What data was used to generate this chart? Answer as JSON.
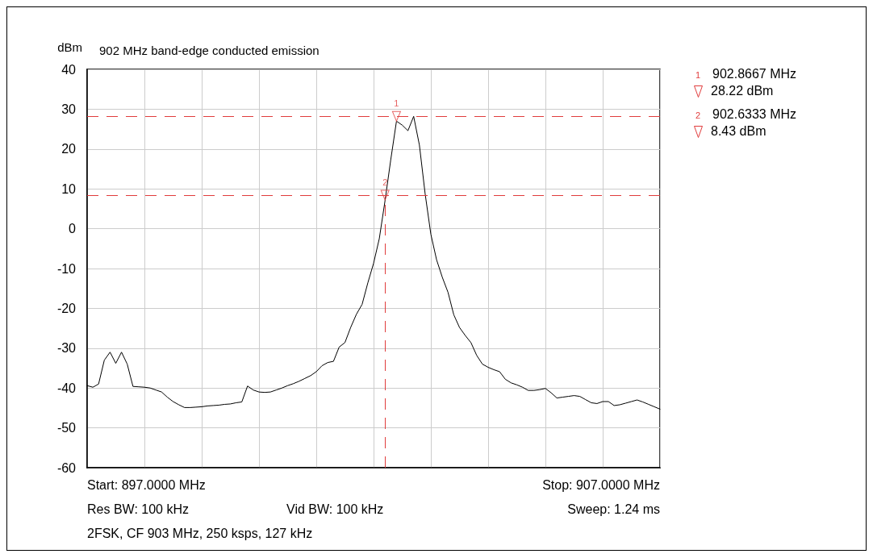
{
  "chart_data": {
    "type": "line",
    "title": "902 MHz band-edge conducted emission",
    "ylabel": "dBm",
    "categories": [
      null,
      null,
      null,
      null,
      null,
      null,
      null,
      null,
      null,
      null,
      null,
      null,
      null,
      null,
      null,
      null,
      null,
      null,
      null,
      null,
      null,
      null,
      null,
      null,
      null,
      null,
      null,
      null,
      null,
      null,
      null,
      null,
      null,
      null,
      null,
      null,
      null,
      null,
      null,
      null,
      null,
      null,
      null,
      null,
      null,
      null,
      null,
      null,
      null,
      null,
      null,
      null,
      null,
      null,
      null,
      null,
      null,
      null,
      null,
      null,
      null,
      null,
      null,
      null,
      null,
      null,
      null,
      null,
      null,
      null,
      null,
      null,
      null,
      null,
      null,
      null,
      null,
      null,
      null,
      null,
      null,
      null,
      null,
      null,
      null,
      null,
      null,
      null,
      null,
      null,
      null,
      null,
      null,
      null,
      null,
      null,
      null,
      null,
      null,
      null,
      null
    ],
    "ylim": [
      -60,
      40
    ],
    "yticks": [
      -60,
      -50,
      -40,
      -30,
      -20,
      -10,
      0,
      10,
      20,
      30,
      40
    ],
    "tick_labels": "y",
    "grid": true,
    "line_style": "solid",
    "series": [
      {
        "color": "#000000",
        "values": [
          -39.4,
          -39.8,
          -39,
          -33,
          -31,
          -33.8,
          -31,
          -34,
          -39.6,
          -39.7,
          -39.8,
          -40,
          -40.5,
          -41,
          -42.3,
          -43.4,
          -44.2,
          -44.9,
          -44.9,
          -44.8,
          -44.7,
          -44.5,
          -44.4,
          -44.3,
          -44.1,
          -44,
          -43.7,
          -43.5,
          -39.5,
          -40.5,
          -41,
          -41.1,
          -41,
          -40.5,
          -40,
          -39.4,
          -38.9,
          -38.3,
          -37.6,
          -36.9,
          -35.9,
          -34.4,
          -33.6,
          -33.3,
          -29.7,
          -28.6,
          -24.8,
          -21.5,
          -19,
          -13.6,
          -8.7,
          -2.5,
          7,
          17.3,
          27,
          26,
          24.6,
          28.2,
          21,
          8.8,
          -1.4,
          -7.8,
          -12.2,
          -16,
          -21.6,
          -24.8,
          -26.8,
          -28.6,
          -31.8,
          -34,
          -34.8,
          -35.4,
          -35.9,
          -37.8,
          -38.7,
          -39.2,
          -39.8,
          -40.6,
          -40.6,
          -40.4,
          -40.1,
          -41.2,
          -42.5,
          -42.3,
          -42.1,
          -41.9,
          -42.1,
          -42.9,
          -43.7,
          -43.9,
          -43.4,
          -43.4,
          -44.4,
          -44.2,
          -43.8,
          -43.4,
          -43,
          -43.5,
          -44.1,
          -44.7,
          -45.3
        ]
      },
      {
        "type": "scatter",
        "name": "1",
        "color": "#e03c3c",
        "marker": "triangle",
        "values": [
          null,
          null,
          null,
          null,
          null,
          null,
          null,
          null,
          null,
          null,
          null,
          null,
          null,
          null,
          null,
          null,
          null,
          null,
          null,
          null,
          null,
          null,
          null,
          null,
          null,
          null,
          null,
          null,
          null,
          null,
          null,
          null,
          null,
          null,
          null,
          null,
          null,
          null,
          null,
          null,
          null,
          null,
          null,
          null,
          null,
          null,
          null,
          null,
          null,
          null,
          null,
          null,
          null,
          null,
          28.22,
          null,
          null,
          null,
          null,
          null,
          null,
          null,
          null,
          null,
          null,
          null,
          null,
          null,
          null,
          null,
          null,
          null,
          null,
          null,
          null,
          null,
          null,
          null,
          null,
          null,
          null,
          null,
          null,
          null,
          null,
          null,
          null,
          null,
          null,
          null,
          null,
          null,
          null,
          null,
          null,
          null,
          null,
          null,
          null,
          null,
          null
        ]
      },
      {
        "type": "scatter",
        "name": "2",
        "color": "#e03c3c",
        "marker": "triangle",
        "line_style": "dashed",
        "values": [
          null,
          null,
          null,
          null,
          null,
          null,
          null,
          null,
          null,
          null,
          null,
          null,
          null,
          null,
          null,
          null,
          null,
          null,
          null,
          null,
          null,
          null,
          null,
          null,
          null,
          null,
          null,
          null,
          null,
          null,
          null,
          null,
          null,
          null,
          null,
          null,
          null,
          null,
          null,
          null,
          null,
          null,
          null,
          null,
          null,
          null,
          null,
          null,
          null,
          null,
          null,
          null,
          8.43,
          null,
          null,
          null,
          null,
          null,
          null,
          null,
          null,
          null,
          null,
          null,
          null,
          null,
          null,
          null,
          null,
          null,
          null,
          null,
          null,
          null,
          null,
          null,
          null,
          null,
          null,
          null,
          null,
          null,
          null,
          null,
          null,
          null,
          null,
          null,
          null,
          null,
          null,
          null,
          null,
          null,
          null,
          null,
          null,
          null,
          null,
          null,
          null
        ],
        "errors": [
          null,
          null,
          null,
          null,
          null,
          null,
          null,
          null,
          null,
          null,
          null,
          null,
          null,
          null,
          null,
          null,
          null,
          null,
          null,
          null,
          null,
          null,
          null,
          null,
          null,
          null,
          null,
          null,
          null,
          null,
          null,
          null,
          null,
          null,
          null,
          null,
          null,
          null,
          null,
          null,
          null,
          null,
          null,
          null,
          null,
          null,
          null,
          null,
          null,
          null,
          null,
          null,
          [
            -60,
            8.43
          ],
          null,
          null,
          null,
          null,
          null,
          null,
          null,
          null,
          null,
          null,
          null,
          null,
          null,
          null,
          null,
          null,
          null,
          null,
          null,
          null,
          null,
          null,
          null,
          null,
          null,
          null,
          null,
          null,
          null,
          null,
          null,
          null,
          null,
          null,
          null,
          null,
          null,
          null,
          null,
          null,
          null,
          null,
          null,
          null,
          null,
          null,
          null,
          null
        ]
      }
    ],
    "ref_lines": [
      {
        "axis": "y",
        "value": 28.22,
        "color": "#e03c3c",
        "line_style": "dashed"
      },
      {
        "axis": "y",
        "value": 8.43,
        "color": "#e03c3c",
        "line_style": "dashed"
      }
    ],
    "annotations": [
      "1",
      "902.8667 MHz",
      "28.22 dBm",
      "2",
      "902.6333 MHz",
      "8.43 dBm",
      "Start: 897.0000 MHz",
      "Stop: 907.0000 MHz",
      "Res BW: 100 kHz",
      "Vid BW: 100 kHz",
      "Sweep: 1.24 ms",
      "2FSK, CF 903 MHz, 250 ksps, 127 kHz"
    ]
  }
}
